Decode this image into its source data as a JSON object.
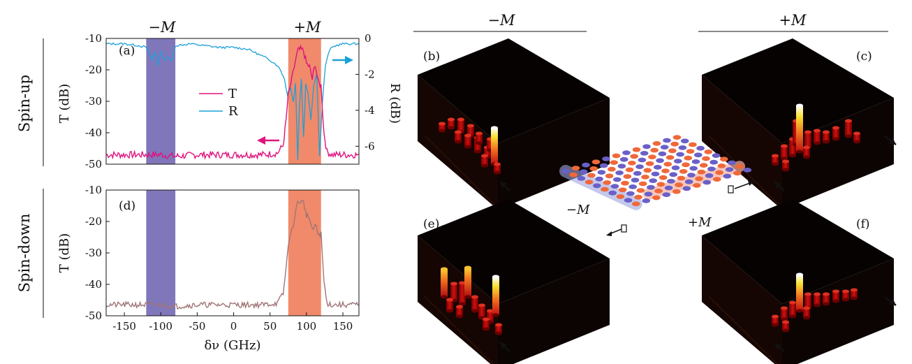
{
  "figure_headers": {
    "minus_m": "−M",
    "plus_m": "+M"
  },
  "row_labels": {
    "spin_up": "Spin-up",
    "spin_down": "Spin-down"
  },
  "panel_labels": {
    "a": "(a)",
    "b": "(b)",
    "c": "(c)",
    "d": "(d)",
    "e": "(e)",
    "f": "(f)"
  },
  "colors": {
    "T": "#e0137e",
    "R": "#1aa0d8",
    "spin_down_T": "#a07577",
    "band_minus": "#8077bb",
    "band_plus": "#f08a6a"
  },
  "inset": {
    "minus_label": "−M",
    "plus_label": "+M"
  },
  "chart_data": [
    {
      "id": "a",
      "type": "line",
      "title": "",
      "xlabel": "",
      "ylabel": "T (dB)",
      "ylabel_right": "R (dB)",
      "xlim": [
        -175,
        172
      ],
      "ylim": [
        -50,
        -10
      ],
      "ylim_right": [
        -7,
        0
      ],
      "yticks": [
        "-10",
        "-20",
        "-30",
        "-40",
        "-50"
      ],
      "yticks_right": [
        "0",
        "-2",
        "-4",
        "-6"
      ],
      "bands": [
        {
          "name": "−M",
          "x": [
            -120,
            -80
          ]
        },
        {
          "name": "+M",
          "x": [
            75,
            120
          ]
        }
      ],
      "legend": [
        "T",
        "R"
      ],
      "legend_position": "center",
      "series": [
        {
          "name": "T",
          "axis": "left",
          "color": "#e0137e",
          "x": [
            -175,
            -130,
            -100,
            -80,
            -50,
            0,
            40,
            60,
            68,
            72,
            75,
            80,
            85,
            88,
            92,
            96,
            100,
            104,
            108,
            112,
            116,
            120,
            124,
            128,
            135,
            150,
            172
          ],
          "values": [
            -47,
            -47,
            -47,
            -47.5,
            -47,
            -47,
            -47,
            -46.5,
            -44,
            -36,
            -28,
            -23,
            -17,
            -14,
            -13.5,
            -14,
            -18,
            -19,
            -23,
            -18,
            -24,
            -25,
            -40,
            -46,
            -47,
            -47,
            -47
          ]
        },
        {
          "name": "R",
          "axis": "right",
          "color": "#1aa0d8",
          "x": [
            -175,
            -150,
            -130,
            -120,
            -112,
            -108,
            -104,
            -100,
            -96,
            -90,
            -85,
            -80,
            -60,
            -40,
            -20,
            0,
            20,
            30,
            40,
            50,
            60,
            65,
            70,
            74,
            78,
            82,
            85,
            88,
            90,
            93,
            96,
            99,
            102,
            106,
            110,
            114,
            118,
            122,
            126,
            132,
            140,
            150,
            160,
            172
          ],
          "values": [
            -0.3,
            -0.3,
            -0.4,
            -0.5,
            -1.2,
            -0.8,
            -1.5,
            -0.7,
            -1.2,
            -1.0,
            -1.3,
            -0.4,
            -0.3,
            -0.4,
            -0.5,
            -0.5,
            -0.6,
            -0.8,
            -1.0,
            -1.2,
            -1.5,
            -1.8,
            -2.3,
            -3.2,
            -2.7,
            -3.5,
            -2.5,
            -6.8,
            -4.0,
            -2.2,
            -5.5,
            -2.5,
            -3.0,
            -4.5,
            -2.6,
            -2.0,
            -6.5,
            -3.5,
            -1.5,
            -0.6,
            -0.4,
            -0.3,
            -0.3,
            -0.3
          ]
        }
      ]
    },
    {
      "id": "d",
      "type": "line",
      "title": "",
      "xlabel": "δν (GHz)",
      "ylabel": "T (dB)",
      "xlim": [
        -175,
        172
      ],
      "ylim": [
        -50,
        -10
      ],
      "yticks": [
        "-10",
        "-20",
        "-30",
        "-40",
        "-50"
      ],
      "xticks": [
        "-150",
        "-100",
        "-50",
        "0",
        "50",
        "100",
        "150"
      ],
      "bands": [
        {
          "name": "−M",
          "x": [
            -120,
            -80
          ]
        },
        {
          "name": "+M",
          "x": [
            75,
            120
          ]
        }
      ],
      "series": [
        {
          "name": "T",
          "color": "#a07577",
          "x": [
            -175,
            -130,
            -100,
            -80,
            -50,
            0,
            40,
            60,
            68,
            72,
            75,
            80,
            85,
            88,
            92,
            96,
            100,
            104,
            108,
            112,
            116,
            120,
            124,
            128,
            135,
            150,
            172
          ],
          "values": [
            -46.5,
            -46.5,
            -46.5,
            -47,
            -46.5,
            -46.5,
            -46.5,
            -46,
            -43,
            -35,
            -27,
            -23,
            -17,
            -14,
            -13.5,
            -14,
            -18,
            -19,
            -23,
            -21,
            -24,
            -24,
            -39,
            -46,
            -46.5,
            -46.5,
            -46.5
          ]
        }
      ]
    }
  ]
}
